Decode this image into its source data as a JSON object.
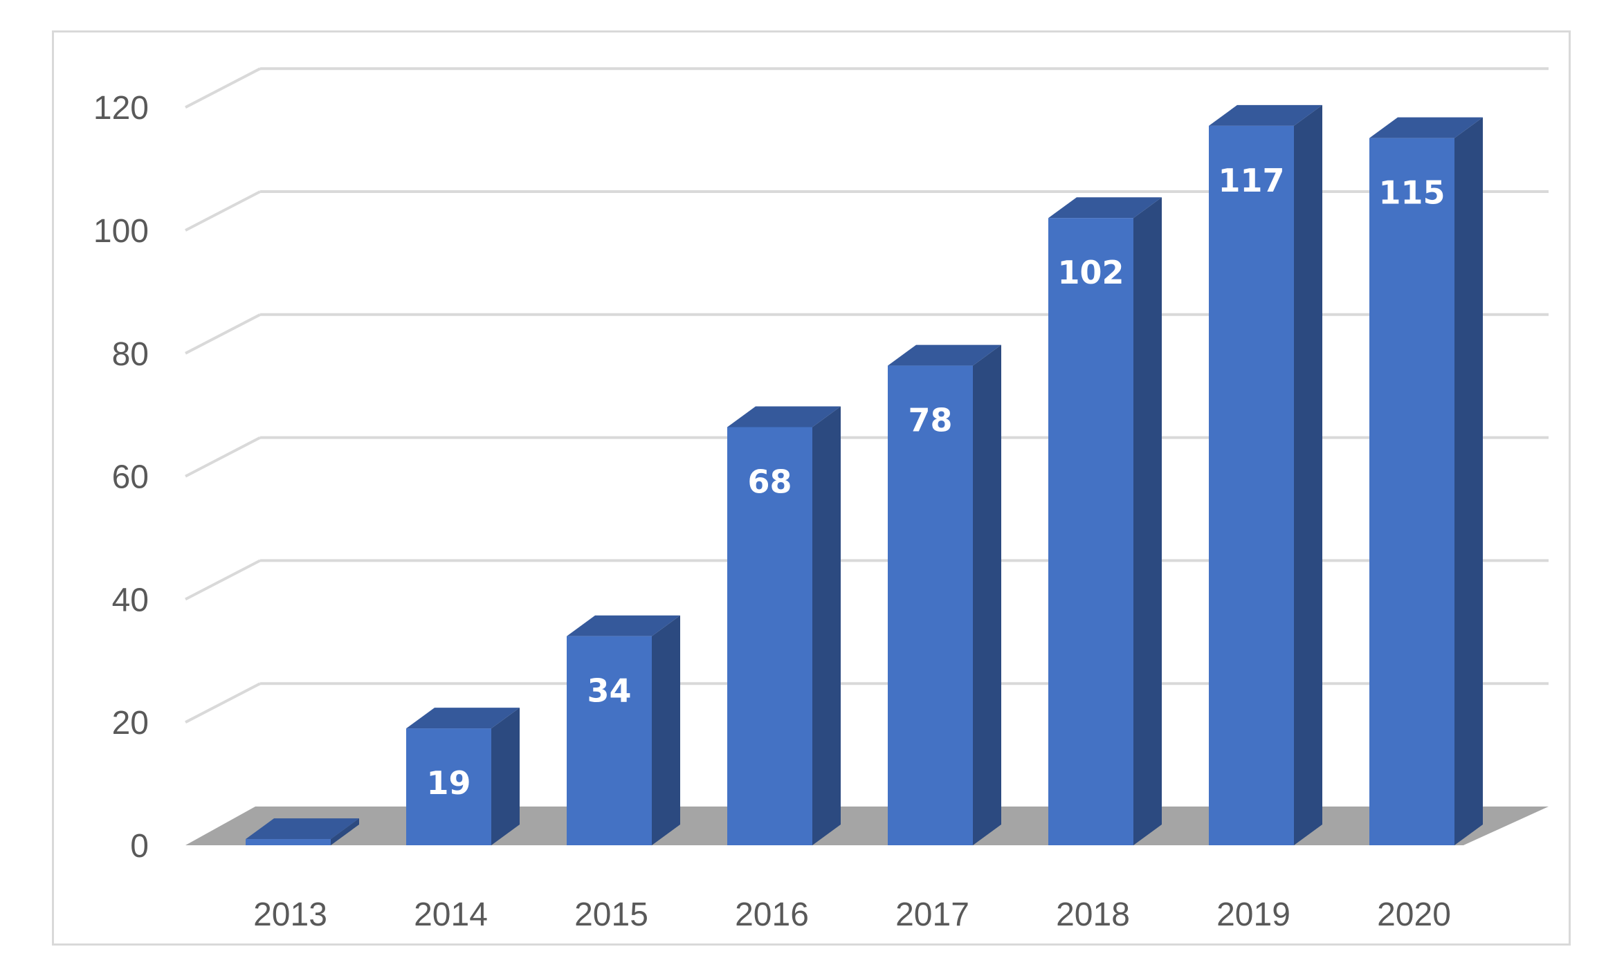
{
  "chart_data": {
    "type": "bar",
    "style": "3d-column",
    "categories": [
      "2013",
      "2014",
      "2015",
      "2016",
      "2017",
      "2018",
      "2019",
      "2020"
    ],
    "values": [
      1,
      19,
      34,
      68,
      78,
      102,
      117,
      115
    ],
    "data_labels": [
      "",
      "19",
      "34",
      "68",
      "78",
      "102",
      "117",
      "115"
    ],
    "title": "",
    "xlabel": "",
    "ylabel": "",
    "ylim": [
      0,
      120
    ],
    "yticks": [
      0,
      20,
      40,
      60,
      80,
      100,
      120
    ],
    "ytick_labels": [
      "0",
      "20",
      "40",
      "60",
      "80",
      "100",
      "120"
    ],
    "grid": true,
    "legend": "none",
    "colors": {
      "bar_front": "#4472c4",
      "bar_side": "#2c4a80",
      "bar_top": "#35599b",
      "floor": "#a5a5a5",
      "gridline": "#d9d9d9",
      "tick_text": "#595959",
      "label_text": "#ffffff"
    }
  }
}
